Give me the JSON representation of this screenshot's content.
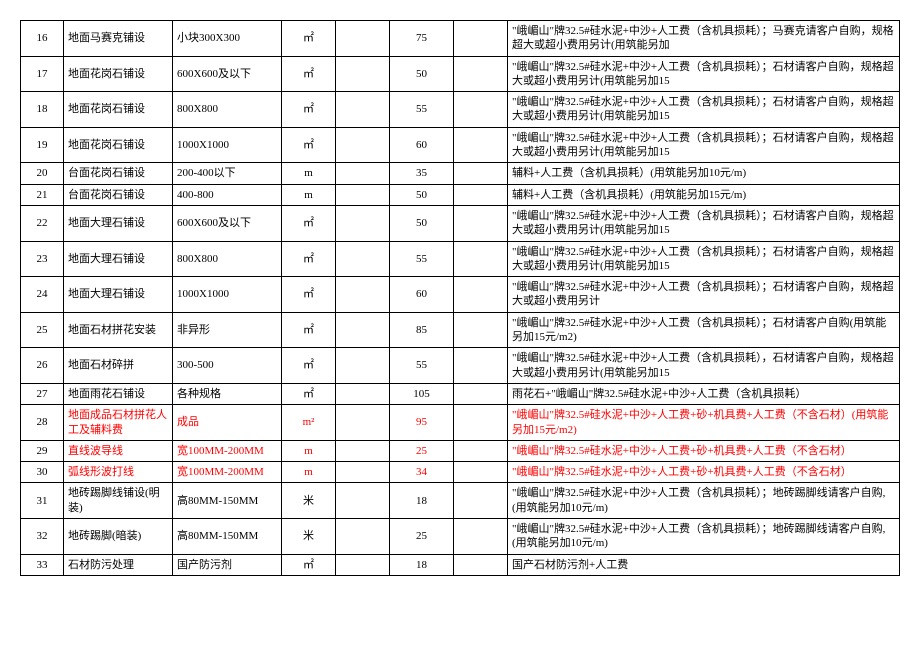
{
  "text_color_normal": "#000000",
  "text_color_highlight": "#ff0000",
  "rows": [
    {
      "no": "16",
      "name": "地面马赛克铺设",
      "spec": "小块300X300",
      "unit": "㎡",
      "price": "75",
      "desc": "\"峨嵋山\"牌32.5#硅水泥+中沙+人工费（含机具损耗）；马赛克请客户自购，规格超大或超小费用另计(用筑能另加",
      "hl": false
    },
    {
      "no": "17",
      "name": "地面花岗石铺设",
      "spec": "600X600及以下",
      "unit": "㎡",
      "price": "50",
      "desc": "\"峨嵋山\"牌32.5#硅水泥+中沙+人工费（含机具损耗）；石材请客户自购，规格超大或超小费用另计(用筑能另加15",
      "hl": false
    },
    {
      "no": "18",
      "name": "地面花岗石铺设",
      "spec": "800X800",
      "unit": "㎡",
      "price": "55",
      "desc": "\"峨嵋山\"牌32.5#硅水泥+中沙+人工费（含机具损耗）；石材请客户自购，规格超大或超小费用另计(用筑能另加15",
      "hl": false
    },
    {
      "no": "19",
      "name": "地面花岗石铺设",
      "spec": "1000X1000",
      "unit": "㎡",
      "price": "60",
      "desc": "\"峨嵋山\"牌32.5#硅水泥+中沙+人工费（含机具损耗）；石材请客户自购，规格超大或超小费用另计(用筑能另加15",
      "hl": false
    },
    {
      "no": "20",
      "name": "台面花岗石铺设",
      "spec": "200-400以下",
      "unit": "m",
      "price": "35",
      "desc": "辅料+人工费（含机具损耗）(用筑能另加10元/m)",
      "hl": false
    },
    {
      "no": "21",
      "name": "台面花岗石铺设",
      "spec": "400-800",
      "unit": "m",
      "price": "50",
      "desc": "辅料+人工费（含机具损耗）(用筑能另加15元/m)",
      "hl": false
    },
    {
      "no": "22",
      "name": "地面大理石铺设",
      "spec": "600X600及以下",
      "unit": "㎡",
      "price": "50",
      "desc": "\"峨嵋山\"牌32.5#硅水泥+中沙+人工费（含机具损耗）；石材请客户自购，规格超大或超小费用另计(用筑能另加15",
      "hl": false
    },
    {
      "no": "23",
      "name": "地面大理石铺设",
      "spec": "800X800",
      "unit": "㎡",
      "price": "55",
      "desc": "\"峨嵋山\"牌32.5#硅水泥+中沙+人工费（含机具损耗）；石材请客户自购，规格超大或超小费用另计(用筑能另加15",
      "hl": false
    },
    {
      "no": "24",
      "name": "地面大理石铺设",
      "spec": "1000X1000",
      "unit": "㎡",
      "price": "60",
      "desc": "\"峨嵋山\"牌32.5#硅水泥+中沙+人工费（含机具损耗）；石材请客户自购，规格超大或超小费用另计",
      "hl": false
    },
    {
      "no": "25",
      "name": "地面石材拼花安装",
      "spec": "非异形",
      "unit": "㎡",
      "price": "85",
      "desc": "\"峨嵋山\"牌32.5#硅水泥+中沙+人工费（含机具损耗）；石材请客户自购(用筑能另加15元/m2)",
      "hl": false
    },
    {
      "no": "26",
      "name": "地面石材碎拼",
      "spec": "300-500",
      "unit": "㎡",
      "price": "55",
      "desc": "\"峨嵋山\"牌32.5#硅水泥+中沙+人工费（含机具损耗），石材请客户自购，规格超大或超小费用另计(用筑能另加15",
      "hl": false
    },
    {
      "no": "27",
      "name": "地面雨花石铺设",
      "spec": "各种规格",
      "unit": "㎡",
      "price": "105",
      "desc": "雨花石+\"峨嵋山\"牌32.5#硅水泥+中沙+人工费（含机具损耗）",
      "hl": false
    },
    {
      "no": "28",
      "name": "地面成品石材拼花人工及辅料费",
      "spec": "成品",
      "unit": "m²",
      "price": "95",
      "desc": "\"峨嵋山\"牌32.5#硅水泥+中沙+人工费+砂+机具费+人工费（不含石材）(用筑能另加15元/m2)",
      "hl": true
    },
    {
      "no": "29",
      "name": "直线波导线",
      "spec": "宽100MM-200MM",
      "unit": "m",
      "price": "25",
      "desc": "\"峨嵋山\"牌32.5#硅水泥+中沙+人工费+砂+机具费+人工费（不含石材）",
      "hl": true
    },
    {
      "no": "30",
      "name": "弧线形波打线",
      "spec": "宽100MM-200MM",
      "unit": "m",
      "price": "34",
      "desc": "\"峨嵋山\"牌32.5#硅水泥+中沙+人工费+砂+机具费+人工费（不含石材）",
      "hl": true
    },
    {
      "no": "31",
      "name": "地砖踢脚线铺设(明装)",
      "spec": "高80MM-150MM",
      "unit": "米",
      "price": "18",
      "desc": "\"峨嵋山\"牌32.5#硅水泥+中沙+人工费（含机具损耗）；地砖踢脚线请客户自购,(用筑能另加10元/m)",
      "hl": false
    },
    {
      "no": "32",
      "name": "地砖踢脚(暗装)",
      "spec": "高80MM-150MM",
      "unit": "米",
      "price": "25",
      "desc": "\"峨嵋山\"牌32.5#硅水泥+中沙+人工费（含机具损耗）；地砖踢脚线请客户自购,(用筑能另加10元/m)",
      "hl": false
    },
    {
      "no": "33",
      "name": "石材防污处理",
      "spec": "国产防污剂",
      "unit": "㎡",
      "price": "18",
      "desc": "国产石材防污剂+人工费",
      "hl": false
    }
  ]
}
